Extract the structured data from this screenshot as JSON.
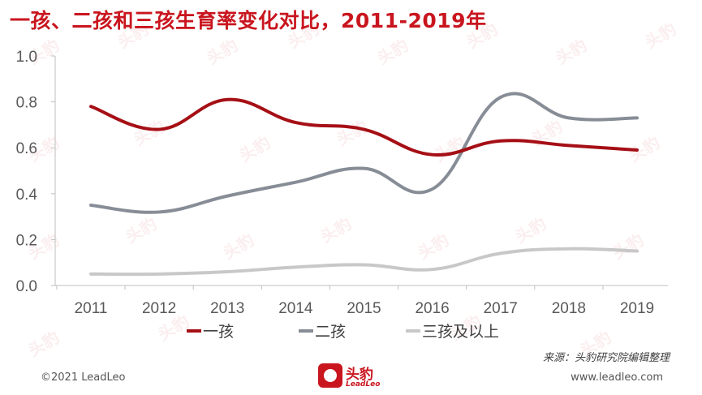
{
  "title": "一孩、二孩和三孩生育率变化对比，2011-2019年",
  "chart_data": {
    "type": "line",
    "categories": [
      "2011",
      "2012",
      "2013",
      "2014",
      "2015",
      "2016",
      "2017",
      "2018",
      "2019"
    ],
    "series": [
      {
        "name": "一孩",
        "color": "#a50f15",
        "values": [
          0.78,
          0.68,
          0.81,
          0.71,
          0.68,
          0.57,
          0.63,
          0.61,
          0.59
        ]
      },
      {
        "name": "二孩",
        "color": "#878d96",
        "values": [
          0.35,
          0.32,
          0.39,
          0.45,
          0.51,
          0.42,
          0.82,
          0.73,
          0.73
        ]
      },
      {
        "name": "三孩及以上",
        "color": "#c8c8c8",
        "values": [
          0.05,
          0.05,
          0.06,
          0.08,
          0.09,
          0.07,
          0.14,
          0.16,
          0.15
        ]
      }
    ],
    "ylim": [
      0,
      1.0
    ],
    "yticks": [
      "0.0",
      "0.2",
      "0.4",
      "0.6",
      "0.8",
      "1.0"
    ],
    "grid": false,
    "legend_position": "bottom"
  },
  "source": "来源：头豹研究院编辑整理",
  "footer": {
    "copyright": "©2021 LeadLeo",
    "website": "www.leadleo.com",
    "logo_text": "头豹",
    "logo_sub": "LeadLeo"
  },
  "watermark_text": "头豹"
}
